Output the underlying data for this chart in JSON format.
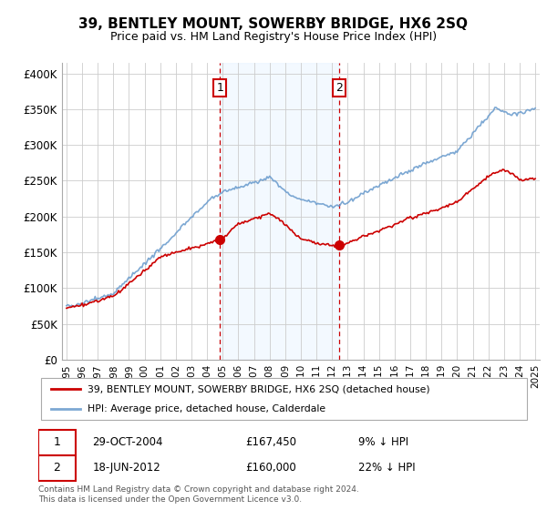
{
  "title": "39, BENTLEY MOUNT, SOWERBY BRIDGE, HX6 2SQ",
  "subtitle": "Price paid vs. HM Land Registry's House Price Index (HPI)",
  "ylabel_ticks": [
    "£0",
    "£50K",
    "£100K",
    "£150K",
    "£200K",
    "£250K",
    "£300K",
    "£350K",
    "£400K"
  ],
  "ytick_values": [
    0,
    50000,
    100000,
    150000,
    200000,
    250000,
    300000,
    350000,
    400000
  ],
  "ylim": [
    0,
    415000
  ],
  "xlim_start": 1994.7,
  "xlim_end": 2025.3,
  "hpi_color": "#6699cc",
  "price_color": "#cc0000",
  "sale1_x": 2004.83,
  "sale1_y": 167450,
  "sale2_x": 2012.46,
  "sale2_y": 160000,
  "sale1_label": "1",
  "sale2_label": "2",
  "shade_color": "#ddeeff",
  "shade_alpha": 0.35,
  "vline_color": "#cc0000",
  "legend_label1": "39, BENTLEY MOUNT, SOWERBY BRIDGE, HX6 2SQ (detached house)",
  "legend_label2": "HPI: Average price, detached house, Calderdale",
  "footnote": "Contains HM Land Registry data © Crown copyright and database right 2024.\nThis data is licensed under the Open Government Licence v3.0.",
  "background_color": "#ffffff",
  "grid_color": "#cccccc"
}
